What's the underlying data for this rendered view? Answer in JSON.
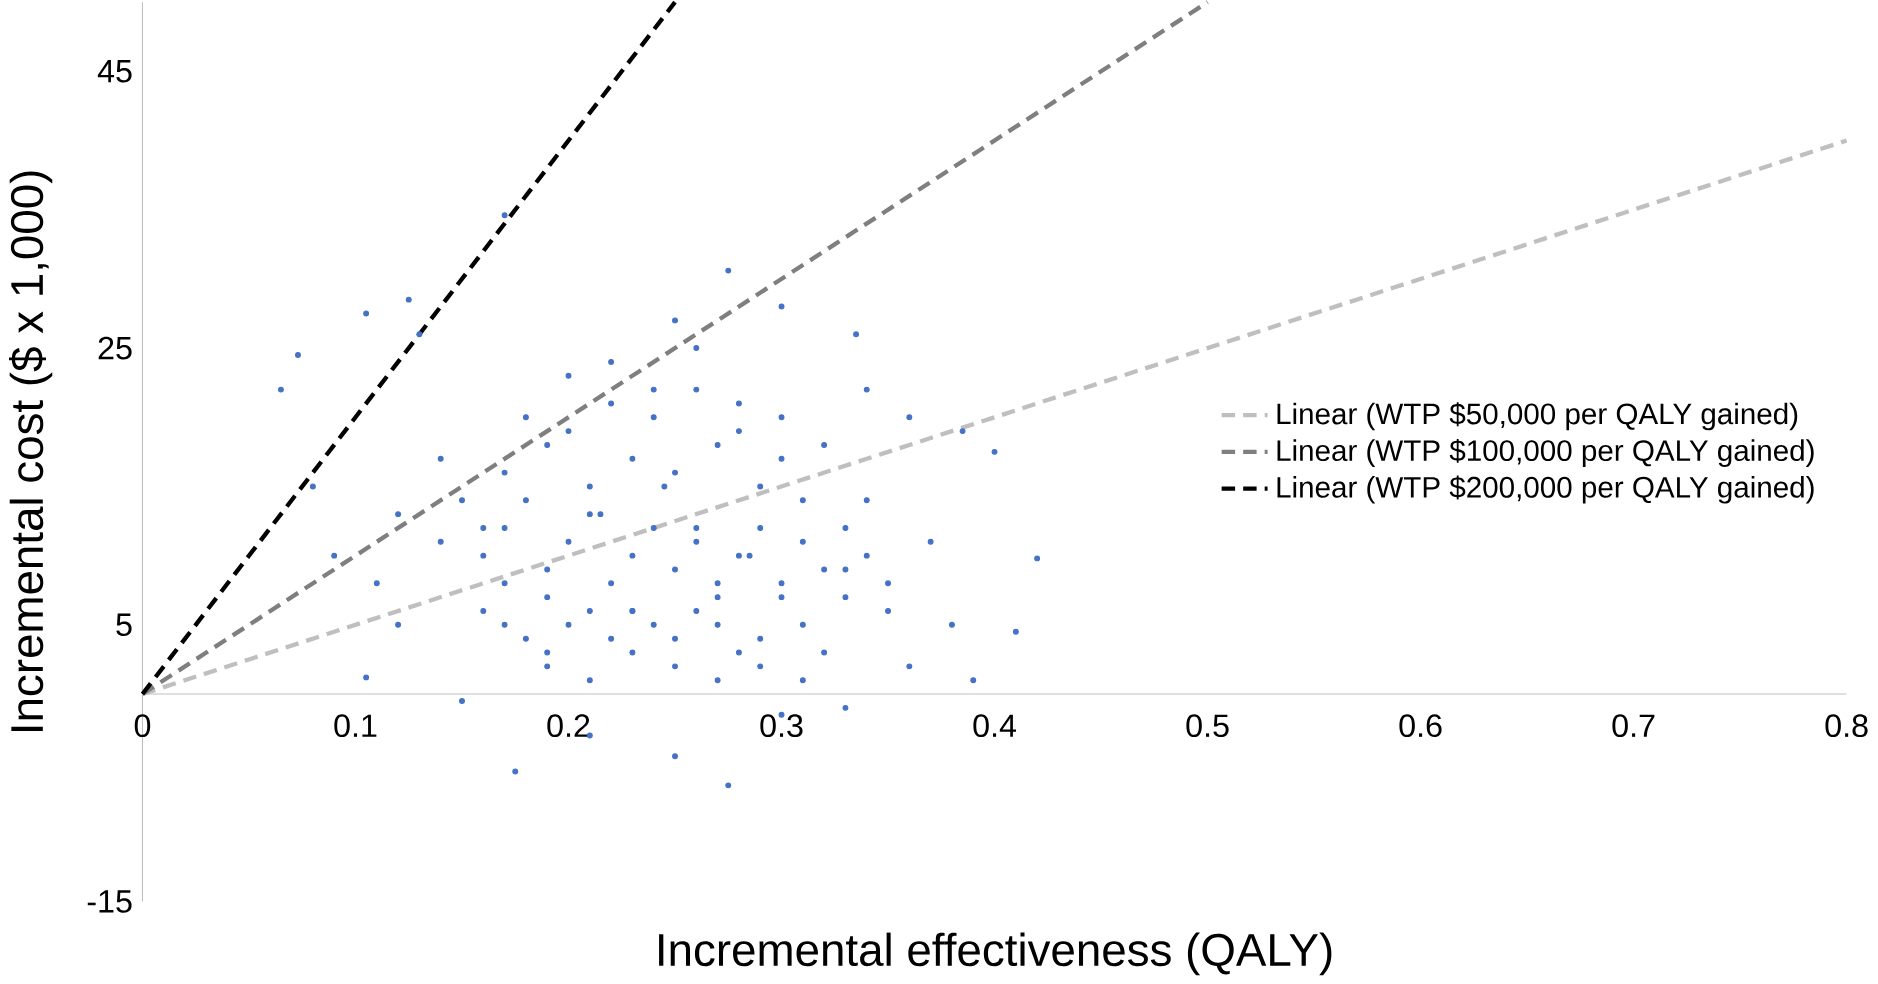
{
  "chart_data": {
    "type": "scatter",
    "xlabel": "Incremental effectiveness (QALY)",
    "ylabel": "Incremental cost ($ x 1,000)",
    "xlim": [
      0,
      0.8
    ],
    "ylim": [
      -15,
      50
    ],
    "xticks": [
      0,
      0.1,
      0.2,
      0.3,
      0.4,
      0.5,
      0.6,
      0.7,
      0.8
    ],
    "yticks": [
      -15,
      5,
      25,
      45
    ],
    "grid": false,
    "legend": "right",
    "series": [
      {
        "color": "#4472c4",
        "marker": "circle",
        "x": [
          0.065,
          0.073,
          0.105,
          0.125,
          0.13,
          0.08,
          0.09,
          0.11,
          0.12,
          0.14,
          0.105,
          0.12,
          0.17,
          0.275,
          0.25,
          0.3,
          0.335,
          0.34,
          0.36,
          0.385,
          0.4,
          0.42,
          0.41,
          0.38,
          0.39,
          0.36,
          0.175,
          0.275,
          0.25,
          0.21,
          0.15,
          0.3,
          0.33,
          0.16,
          0.17,
          0.18,
          0.19,
          0.2,
          0.21,
          0.22,
          0.23,
          0.24,
          0.25,
          0.26,
          0.27,
          0.28,
          0.29,
          0.3,
          0.31,
          0.32,
          0.33,
          0.34,
          0.16,
          0.17,
          0.18,
          0.19,
          0.2,
          0.21,
          0.22,
          0.23,
          0.24,
          0.25,
          0.26,
          0.27,
          0.28,
          0.29,
          0.3,
          0.31,
          0.32,
          0.35,
          0.15,
          0.17,
          0.19,
          0.21,
          0.23,
          0.25,
          0.27,
          0.29,
          0.31,
          0.33,
          0.18,
          0.2,
          0.22,
          0.24,
          0.26,
          0.28,
          0.3,
          0.32,
          0.34,
          0.19,
          0.21,
          0.23,
          0.25,
          0.27,
          0.29,
          0.31,
          0.2,
          0.22,
          0.24,
          0.26,
          0.28,
          0.3,
          0.17,
          0.19,
          0.23,
          0.27,
          0.33,
          0.35,
          0.37,
          0.14,
          0.16,
          0.215,
          0.245,
          0.285,
          0.26
        ],
        "values": [
          22,
          24.5,
          27.5,
          28.5,
          26,
          15,
          10,
          8,
          13,
          17,
          1.2,
          5,
          34.6,
          30.6,
          27,
          28,
          26,
          22,
          20,
          19,
          17.5,
          9.8,
          4.5,
          5,
          1,
          2,
          -5.6,
          -6.6,
          -4.5,
          -3,
          -0.5,
          -1.5,
          -1,
          10,
          12,
          14,
          9,
          11,
          13,
          8,
          10,
          12,
          9,
          11,
          7,
          10,
          12,
          8,
          11,
          9,
          7,
          10,
          6,
          5,
          4,
          3,
          5,
          6,
          4,
          6,
          5,
          4,
          6,
          5,
          3,
          4,
          7,
          5,
          3,
          6,
          14,
          16,
          18,
          15,
          17,
          16,
          18,
          15,
          14,
          12,
          20,
          19,
          21,
          20,
          22,
          19,
          17,
          18,
          14,
          2,
          1,
          3,
          2,
          1,
          2,
          1,
          23,
          24,
          22,
          25,
          21,
          20,
          8,
          7,
          6,
          8,
          9,
          8,
          11,
          11,
          12,
          13,
          15,
          10,
          12
        ]
      },
      {
        "type": "line",
        "name": "Linear (WTP $50,000 per QALY gained)",
        "color": "#bfbfbf",
        "marker": "none",
        "line_style": "dashed",
        "x": [
          0,
          0.8
        ],
        "values": [
          0,
          40
        ]
      },
      {
        "type": "line",
        "name": "Linear (WTP $100,000 per QALY gained)",
        "color": "#7f7f7f",
        "marker": "none",
        "line_style": "dashed",
        "x": [
          0,
          0.5
        ],
        "values": [
          0,
          50
        ]
      },
      {
        "type": "line",
        "name": "Linear (WTP $200,000 per QALY gained)",
        "color": "#000000",
        "marker": "none",
        "line_style": "dashed",
        "x": [
          0,
          0.25
        ],
        "values": [
          0,
          50
        ]
      }
    ]
  }
}
